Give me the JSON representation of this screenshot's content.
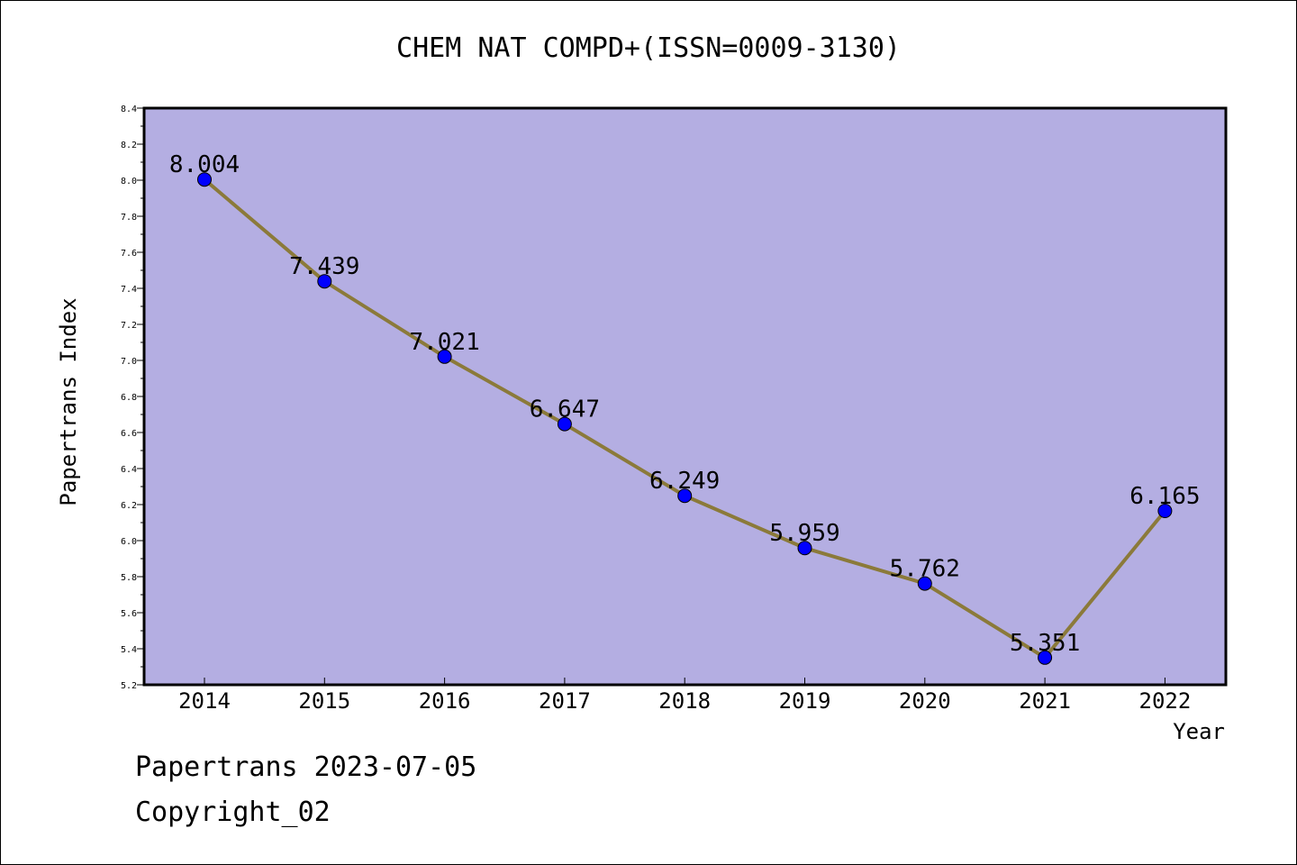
{
  "title": "CHEM NAT COMPD+(ISSN=0009-3130)",
  "footer": {
    "date_line": "Papertrans 2023-07-05",
    "copyright_line": "Copyright_02"
  },
  "colors": {
    "plot_background": "#b4aee2",
    "line": "#8b7a3a",
    "marker": "#0000ff",
    "axis": "#000000"
  },
  "chart_data": {
    "type": "line",
    "title": "CHEM NAT COMPD+(ISSN=0009-3130)",
    "xlabel": "Year",
    "ylabel": "Papertrans Index",
    "categories": [
      "2014",
      "2015",
      "2016",
      "2017",
      "2018",
      "2019",
      "2020",
      "2021",
      "2022"
    ],
    "values": [
      8.004,
      7.439,
      7.021,
      6.647,
      6.249,
      5.959,
      5.762,
      5.351,
      6.165
    ],
    "data_labels": [
      "8.004",
      "7.439",
      "7.021",
      "6.647",
      "6.249",
      "5.959",
      "5.762",
      "5.351",
      "6.165"
    ],
    "ylim": [
      5.2,
      8.4
    ],
    "yticks": [
      "5.2",
      "5.4",
      "5.6",
      "5.8",
      "6.0",
      "6.2",
      "6.4",
      "6.6",
      "6.8",
      "7.0",
      "7.2",
      "7.4",
      "7.6",
      "7.8",
      "8.0",
      "8.2",
      "8.4"
    ],
    "grid": false,
    "legend": "none",
    "marker": "circle"
  }
}
